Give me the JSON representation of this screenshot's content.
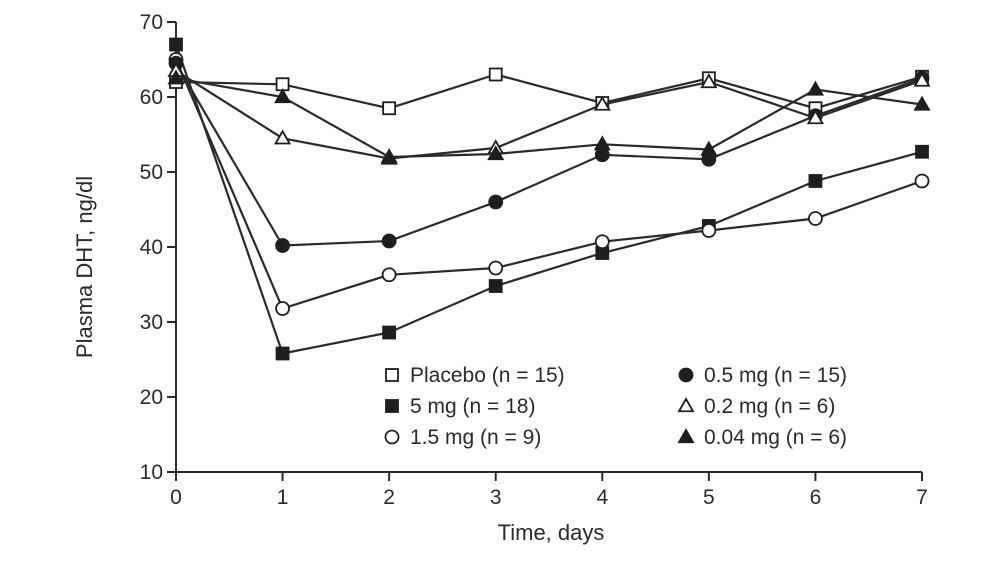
{
  "chart_data": {
    "type": "line",
    "xlabel": "Time, days",
    "ylabel": "Plasma DHT, ng/dl",
    "xlim": [
      0,
      7
    ],
    "ylim": [
      10,
      70
    ],
    "xticks": [
      0,
      1,
      2,
      3,
      4,
      5,
      6,
      7
    ],
    "yticks": [
      10,
      20,
      30,
      40,
      50,
      60,
      70
    ],
    "grid": false,
    "legend_position": "bottom-right",
    "x": [
      0,
      1,
      2,
      3,
      4,
      5,
      6,
      7
    ],
    "series": [
      {
        "name": "Placebo (n = 15)",
        "marker": "square-open",
        "values": [
          62,
          61.7,
          58.5,
          63,
          59.2,
          62.5,
          58.5,
          62.7
        ]
      },
      {
        "name": "5 mg (n = 18)",
        "marker": "square-filled",
        "values": [
          67,
          25.8,
          28.6,
          34.8,
          39.2,
          42.8,
          48.8,
          52.7
        ]
      },
      {
        "name": "1.5 mg (n = 9)",
        "marker": "circle-open",
        "values": [
          65,
          31.8,
          36.3,
          37.2,
          40.7,
          42.2,
          43.8,
          48.8
        ]
      },
      {
        "name": "0.5 mg (n = 15)",
        "marker": "circle-filled",
        "values": [
          64.5,
          40.2,
          40.8,
          46,
          52.3,
          51.7,
          57.5,
          62.5
        ]
      },
      {
        "name": "0.2 mg (n = 6)",
        "marker": "triangle-open",
        "values": [
          63.5,
          54.5,
          51.8,
          53.2,
          59,
          62,
          57.2,
          62.2
        ]
      },
      {
        "name": "0.04 mg (n = 6)",
        "marker": "triangle-filled",
        "values": [
          62.5,
          60,
          52,
          52.4,
          53.7,
          53,
          61,
          59
        ]
      }
    ],
    "legend_columns": [
      [
        0,
        1,
        2
      ],
      [
        3,
        4,
        5
      ]
    ]
  }
}
